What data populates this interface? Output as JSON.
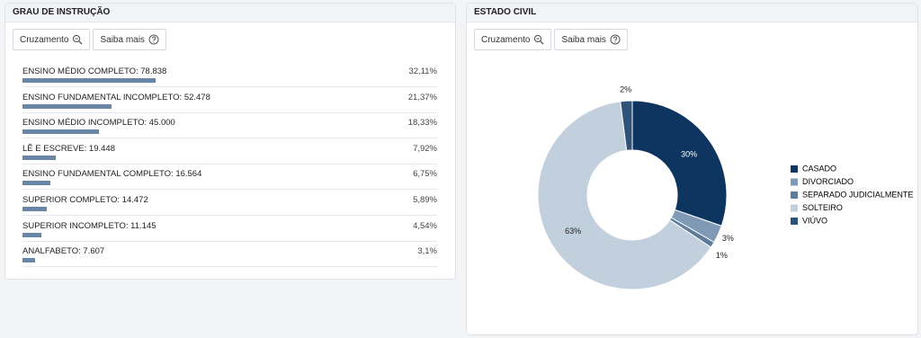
{
  "chart_data": [
    {
      "type": "bar",
      "orientation": "horizontal",
      "title": "GRAU DE INSTRUÇÃO",
      "categories": [
        "ENSINO MÉDIO COMPLETO: 78.838",
        "ENSINO FUNDAMENTAL INCOMPLETO: 52.478",
        "ENSINO MÉDIO INCOMPLETO: 45.000",
        "LÊ E ESCREVE: 19.448",
        "ENSINO FUNDAMENTAL COMPLETO: 16.564",
        "SUPERIOR COMPLETO: 14.472",
        "SUPERIOR INCOMPLETO: 11.145",
        "ANALFABETO: 7.607"
      ],
      "values": [
        32.11,
        21.37,
        18.33,
        7.92,
        6.75,
        5.89,
        4.54,
        3.1
      ],
      "value_labels": [
        "32,11%",
        "21,37%",
        "18,33%",
        "7,92%",
        "6,75%",
        "5,89%",
        "4,54%",
        "3,1%"
      ],
      "xlim": [
        0,
        100
      ],
      "color": "#6a86a6"
    },
    {
      "type": "pie",
      "donut": true,
      "title": "ESTADO CIVIL",
      "categories": [
        "CASADO",
        "DIVORCIADO",
        "SEPARADO JUDICIALMENTE",
        "SOLTEIRO",
        "VIÚVO"
      ],
      "values": [
        30,
        3,
        1,
        63,
        2
      ],
      "value_labels": [
        "30%",
        "3%",
        "1%",
        "63%",
        "2%"
      ],
      "colors": [
        "#0d3560",
        "#8099b4",
        "#5f7c9c",
        "#c2cfdc",
        "#2f5378"
      ],
      "legend": "right"
    }
  ],
  "toolbars": [
    [
      "Cruzamento",
      "Saiba mais"
    ],
    [
      "Cruzamento",
      "Saiba mais"
    ]
  ]
}
